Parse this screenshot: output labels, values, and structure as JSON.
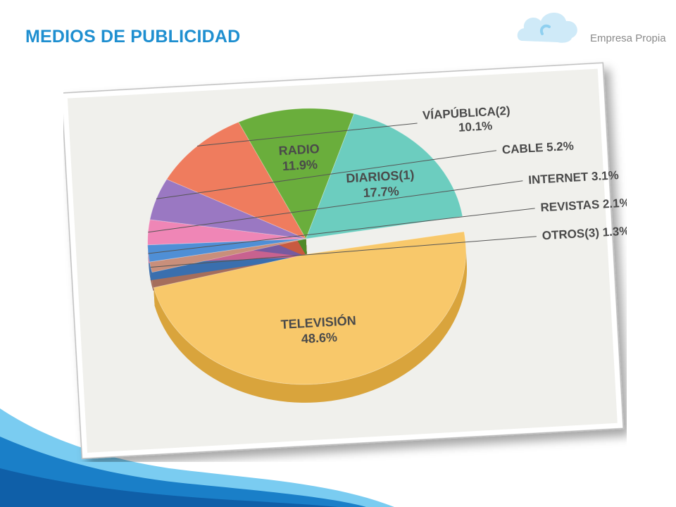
{
  "slide": {
    "title": "MEDIOS DE PUBLICIDAD",
    "brand": "Empresa Propia"
  },
  "colors": {
    "title": "#1f8fd0",
    "frame_bg": "#f0f0ec",
    "wave_dark": "#1a7fc8",
    "wave_light": "#63c3ee"
  },
  "chart_data": {
    "type": "pie",
    "title": "",
    "slices": [
      {
        "label": "TELEVISIÓN",
        "value": 48.6,
        "value_text": "48.6%",
        "color": "#f8c86a",
        "side": "#d9a43c"
      },
      {
        "label": "OTROS(3)",
        "value": 1.3,
        "value_text": "1.3%",
        "color": "#c98f7b",
        "side": "#a56e5c"
      },
      {
        "label": "REVISTAS",
        "value": 2.1,
        "value_text": "2.1%",
        "color": "#4f8fd6",
        "side": "#3a6fae"
      },
      {
        "label": "INTERNET",
        "value": 3.1,
        "value_text": "3.1%",
        "color": "#ef86b6",
        "side": "#c8628f"
      },
      {
        "label": "CABLE",
        "value": 5.2,
        "value_text": "5.2%",
        "color": "#9a78c2",
        "side": "#775aa0"
      },
      {
        "label": "VÍAPÚBLICA(2)",
        "value": 10.1,
        "value_text": "10.1%",
        "color": "#ef7c5e",
        "side": "#c85a40"
      },
      {
        "label": "RADIO",
        "value": 11.9,
        "value_text": "11.9%",
        "color": "#6aae3c",
        "side": "#4e8a28"
      },
      {
        "label": "DIARIOS(1)",
        "value": 17.7,
        "value_text": "17.7%",
        "color": "#6ccdbf",
        "side": "#3f8c80"
      }
    ],
    "legend": "none"
  }
}
